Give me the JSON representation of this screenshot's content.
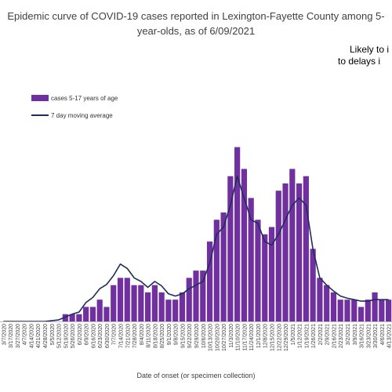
{
  "chart_data": {
    "type": "bar",
    "title_lines": [
      "Epidemic curve of COVID-19 cases reported in Lexington-Fayette County among 5-",
      "year-olds, as of 6/09/2021"
    ],
    "annotation_lines": [
      "Likely to i",
      "to delays i"
    ],
    "xlabel": "Date of onset (or specimen collection)",
    "ylabel": "",
    "ylim": [
      0,
      34
    ],
    "grid": false,
    "legend_position": "top-left",
    "categories": [
      "3/7/2020",
      "3/17/2020",
      "3/27/2020",
      "4/7/2020",
      "4/14/2020",
      "4/21/2020",
      "4/28/2020",
      "5/5/2020",
      "5/12/2020",
      "5/19/2020",
      "5/26/2020",
      "6/2/2020",
      "6/9/2020",
      "6/16/2020",
      "6/23/2020",
      "6/30/2020",
      "7/7/2020",
      "7/14/2020",
      "7/21/2020",
      "7/28/2020",
      "8/4/2020",
      "8/11/2020",
      "8/18/2020",
      "8/25/2020",
      "9/1/2020",
      "9/8/2020",
      "9/15/2020",
      "9/22/2020",
      "9/29/2020",
      "10/6/2020",
      "10/13/2020",
      "10/20/2020",
      "10/27/2020",
      "11/3/2020",
      "11/10/2020",
      "11/17/2020",
      "11/24/2020",
      "12/1/2020",
      "12/8/2020",
      "12/15/2020",
      "12/22/2020",
      "12/29/2020",
      "1/5/2021",
      "1/12/2021",
      "1/19/2021",
      "1/26/2021",
      "2/2/2021",
      "2/9/2021",
      "2/16/2021",
      "2/23/2021",
      "3/2/2021",
      "3/9/2021",
      "3/16/2021",
      "3/23/2021",
      "3/30/2021",
      "4/6/2021",
      "4/13/2021"
    ],
    "series": [
      {
        "name": "cases 5-17 years of age",
        "kind": "bar",
        "color": "#7030a0",
        "values": [
          0,
          0,
          0,
          0,
          0,
          0,
          0,
          0,
          0,
          1,
          1,
          1,
          2,
          2,
          3,
          2,
          5,
          6,
          6,
          5,
          5,
          4,
          5,
          4,
          3,
          3,
          4,
          6,
          7,
          7,
          11,
          14,
          15,
          20,
          24,
          21,
          17,
          14,
          12,
          13,
          18,
          19,
          21,
          19,
          20,
          10,
          6,
          5,
          4,
          3,
          3,
          3,
          2,
          3,
          4,
          3,
          3
        ]
      },
      {
        "name": "7 day moving average",
        "kind": "line",
        "color": "#1f2d5c",
        "values": [
          0,
          0,
          0,
          0,
          0,
          0,
          0,
          0.1,
          0.2,
          0.6,
          1,
          1.3,
          2.6,
          3.3,
          4.5,
          5.1,
          6.3,
          7.9,
          7.3,
          6,
          5.5,
          4.7,
          5.5,
          4.9,
          3.8,
          3.5,
          3.8,
          4.5,
          5,
          5.5,
          8,
          12,
          13,
          16,
          20,
          17,
          14,
          13.5,
          11,
          10.5,
          12,
          14,
          16,
          17,
          16,
          10,
          6,
          5,
          4.2,
          3.5,
          3.2,
          3,
          2.8,
          2.8,
          3,
          3,
          3
        ]
      }
    ]
  }
}
